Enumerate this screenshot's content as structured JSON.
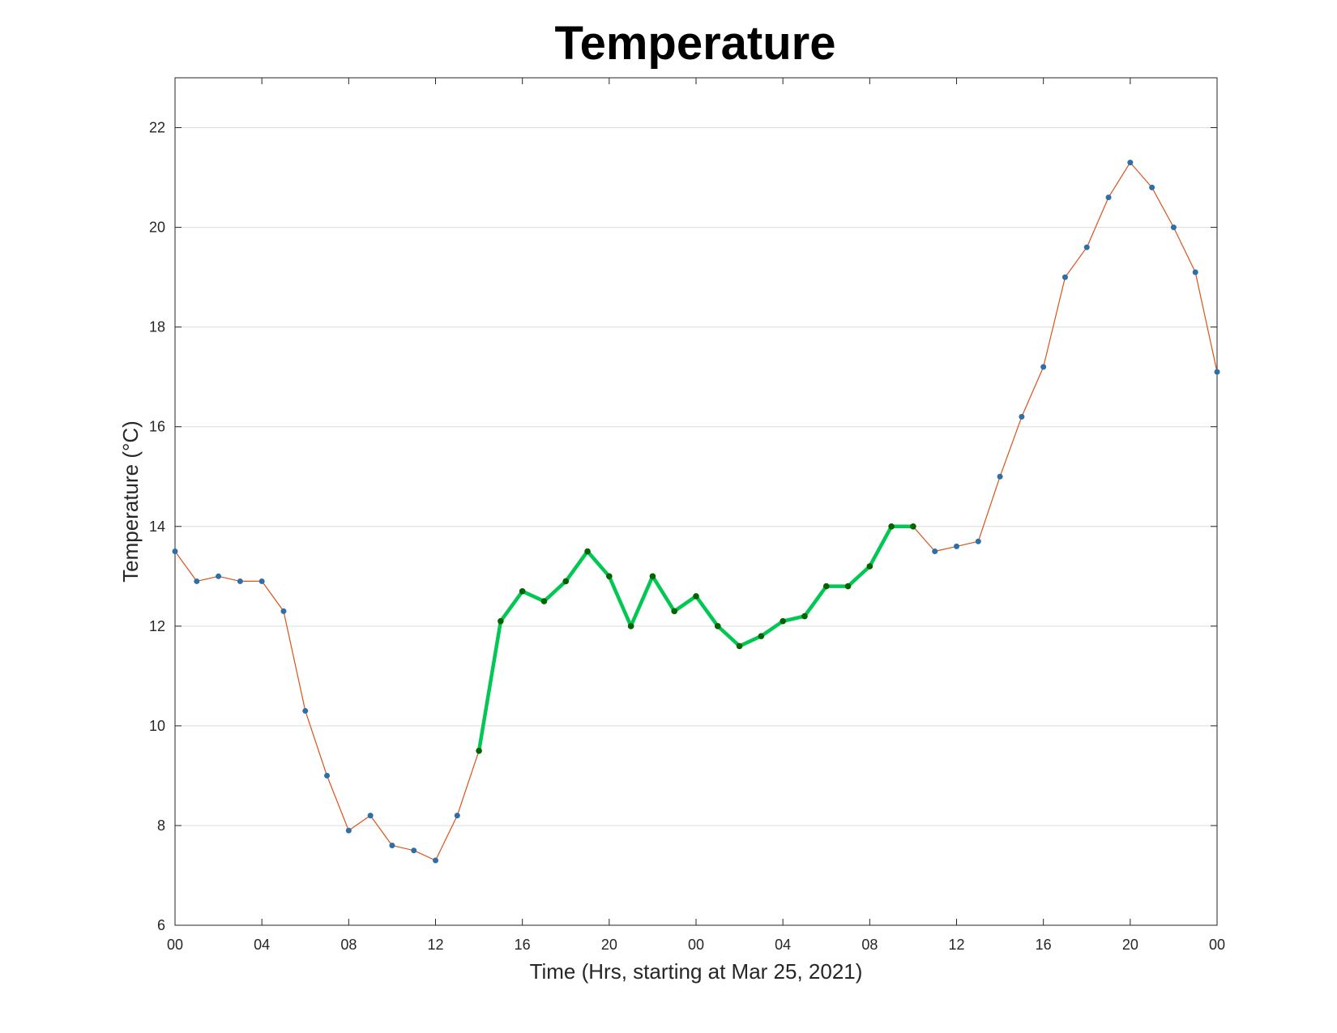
{
  "chart_data": {
    "type": "line",
    "title": "Temperature",
    "xlabel": "Time (Hrs, starting at Mar 25, 2021)",
    "ylabel": "Temperature (°C)",
    "x_unit": "hour",
    "x_range": [
      "2021-03-25 00:00",
      "2021-03-27 00:00"
    ],
    "ylim": [
      6,
      23
    ],
    "yticks": [
      6,
      8,
      10,
      12,
      14,
      16,
      18,
      20,
      22
    ],
    "xticks": [
      {
        "t": "2021-03-25 00:00",
        "label": "00"
      },
      {
        "t": "2021-03-25 04:00",
        "label": "04"
      },
      {
        "t": "2021-03-25 08:00",
        "label": "08"
      },
      {
        "t": "2021-03-25 12:00",
        "label": "12"
      },
      {
        "t": "2021-03-25 16:00",
        "label": "16"
      },
      {
        "t": "2021-03-25 20:00",
        "label": "20"
      },
      {
        "t": "2021-03-26 00:00",
        "label": "00"
      },
      {
        "t": "2021-03-26 04:00",
        "label": "04"
      },
      {
        "t": "2021-03-26 08:00",
        "label": "08"
      },
      {
        "t": "2021-03-26 12:00",
        "label": "12"
      },
      {
        "t": "2021-03-26 16:00",
        "label": "16"
      },
      {
        "t": "2021-03-26 20:00",
        "label": "20"
      },
      {
        "t": "2021-03-27 00:00",
        "label": "00"
      }
    ],
    "grid": "horizontal",
    "series": [
      {
        "x": [
          "2021-03-25 00:00",
          "2021-03-25 01:00",
          "2021-03-25 02:00",
          "2021-03-25 03:00",
          "2021-03-25 04:00",
          "2021-03-25 05:00",
          "2021-03-25 06:00",
          "2021-03-25 07:00",
          "2021-03-25 08:00",
          "2021-03-25 09:00",
          "2021-03-25 10:00",
          "2021-03-25 11:00",
          "2021-03-25 12:00",
          "2021-03-25 13:00",
          "2021-03-25 14:00",
          "2021-03-25 15:00",
          "2021-03-25 16:00",
          "2021-03-25 17:00",
          "2021-03-25 18:00",
          "2021-03-25 19:00",
          "2021-03-25 20:00",
          "2021-03-25 21:00",
          "2021-03-25 22:00",
          "2021-03-25 23:00",
          "2021-03-26 00:00",
          "2021-03-26 01:00",
          "2021-03-26 02:00",
          "2021-03-26 03:00",
          "2021-03-26 04:00",
          "2021-03-26 05:00",
          "2021-03-26 06:00",
          "2021-03-26 07:00",
          "2021-03-26 08:00",
          "2021-03-26 09:00",
          "2021-03-26 10:00",
          "2021-03-26 11:00",
          "2021-03-26 12:00",
          "2021-03-26 13:00",
          "2021-03-26 14:00",
          "2021-03-26 15:00",
          "2021-03-26 16:00",
          "2021-03-26 17:00",
          "2021-03-26 18:00",
          "2021-03-26 19:00",
          "2021-03-26 20:00",
          "2021-03-26 21:00",
          "2021-03-26 22:00",
          "2021-03-26 23:00",
          "2021-03-27 00:00"
        ],
        "values": [
          13.5,
          12.9,
          13.0,
          12.9,
          12.9,
          12.3,
          10.3,
          9.0,
          7.9,
          8.2,
          7.6,
          7.5,
          7.3,
          8.2,
          9.5,
          12.1,
          12.7,
          12.5,
          12.9,
          13.5,
          13.0,
          12.0,
          13.0,
          12.3,
          12.6,
          12.0,
          11.6,
          11.8,
          12.1,
          12.2,
          12.8,
          12.8,
          13.2,
          14.0,
          14.0,
          13.5,
          13.6,
          13.7,
          15.0,
          16.2,
          17.2,
          19.0,
          19.6,
          20.6,
          21.3,
          20.8,
          20.0,
          19.1,
          17.1
        ],
        "line_color": "#d95319",
        "marker_color": "#2f6fa8"
      },
      {
        "x": [
          "2021-03-25 14:00",
          "2021-03-25 15:00",
          "2021-03-25 16:00",
          "2021-03-25 17:00",
          "2021-03-25 18:00",
          "2021-03-25 19:00",
          "2021-03-25 20:00",
          "2021-03-25 21:00",
          "2021-03-25 22:00",
          "2021-03-25 23:00",
          "2021-03-26 00:00",
          "2021-03-26 01:00",
          "2021-03-26 02:00",
          "2021-03-26 03:00",
          "2021-03-26 04:00",
          "2021-03-26 05:00",
          "2021-03-26 06:00",
          "2021-03-26 07:00",
          "2021-03-26 08:00",
          "2021-03-26 09:00",
          "2021-03-26 10:00"
        ],
        "values": [
          9.5,
          12.1,
          12.7,
          12.5,
          12.9,
          13.5,
          13.0,
          12.0,
          13.0,
          12.3,
          12.6,
          12.0,
          11.6,
          11.8,
          12.1,
          12.2,
          12.8,
          12.8,
          13.2,
          14.0,
          14.0
        ],
        "line_color": "#00c853",
        "marker_color": "#006400"
      }
    ]
  }
}
